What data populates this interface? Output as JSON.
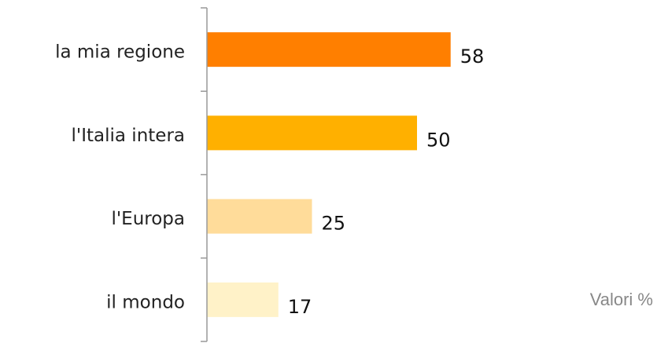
{
  "chart_data": {
    "type": "bar",
    "orientation": "horizontal",
    "categories": [
      "la mia regione",
      "l'Italia intera",
      "l'Europa",
      "il mondo"
    ],
    "values": [
      58,
      50,
      25,
      17
    ],
    "colors": [
      "#ff7f00",
      "#ffb000",
      "#ffdc9a",
      "#fff2c8"
    ],
    "xlim": [
      0,
      100
    ],
    "annotation": "Valori %"
  }
}
